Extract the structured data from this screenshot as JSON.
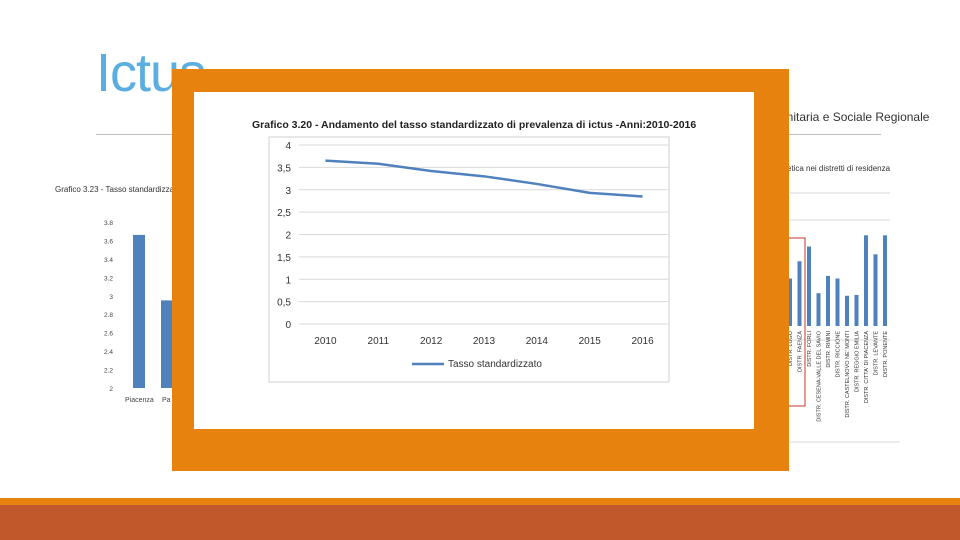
{
  "slide": {
    "title": "Ictus",
    "subtitle_right": "anitaria e Sociale Regionale"
  },
  "colors": {
    "title": "#5aaee0",
    "frame": "#e8820f",
    "footer": "#c0582b",
    "line": "#4f81bd",
    "bars": "#4f81bd",
    "highlight_box": "#c0392b"
  },
  "bg_left": {
    "title": "Grafico 3.23 - Tasso standardizza",
    "y_ticks": [
      "3.8",
      "3.6",
      "3.4",
      "3.2",
      "3",
      "2.8",
      "2.6",
      "2.4",
      "2.2",
      "2"
    ],
    "categories": [
      "Piacenza",
      "Pa"
    ],
    "values": [
      3.66,
      2.95
    ],
    "ylim": [
      2,
      3.8
    ]
  },
  "bg_right": {
    "title": "abetica nei distretti di residenza",
    "labels": [
      "DISTR. LUGO",
      "DISTR. FAENZA",
      "DISTR. FORLI",
      "DISTR. CESENA-VALLE DEL SAVIO",
      "DISTR. RIMINI",
      "DISTR. RICCIONE",
      "DISTR. CASTELNOVO NE' MONTI",
      "DISTR. REGGIO EMILIA",
      "DISTR. CITTA' DI PIACENZA",
      "DISTR. LEVANTE",
      "DISTR. PONENTE"
    ],
    "values": [
      0.55,
      0.75,
      0.92,
      0.38,
      0.58,
      0.55,
      0.35,
      0.36,
      1.05,
      0.83,
      1.05
    ]
  },
  "chart_data": {
    "type": "line",
    "title": "Grafico 3.20 - Andamento del tasso standardizzato di prevalenza di ictus -Anni:2010-2016",
    "categories": [
      "2010",
      "2011",
      "2012",
      "2013",
      "2014",
      "2015",
      "2016"
    ],
    "series": [
      {
        "name": "Tasso standardizzato",
        "values": [
          3.65,
          3.58,
          3.42,
          3.3,
          3.13,
          2.93,
          2.85
        ]
      }
    ],
    "y_ticks": [
      "0",
      "0,5",
      "1",
      "1,5",
      "2",
      "2,5",
      "3",
      "3,5",
      "4"
    ],
    "ylim": [
      0,
      4
    ],
    "grid": true,
    "legend_position": "bottom-left"
  }
}
